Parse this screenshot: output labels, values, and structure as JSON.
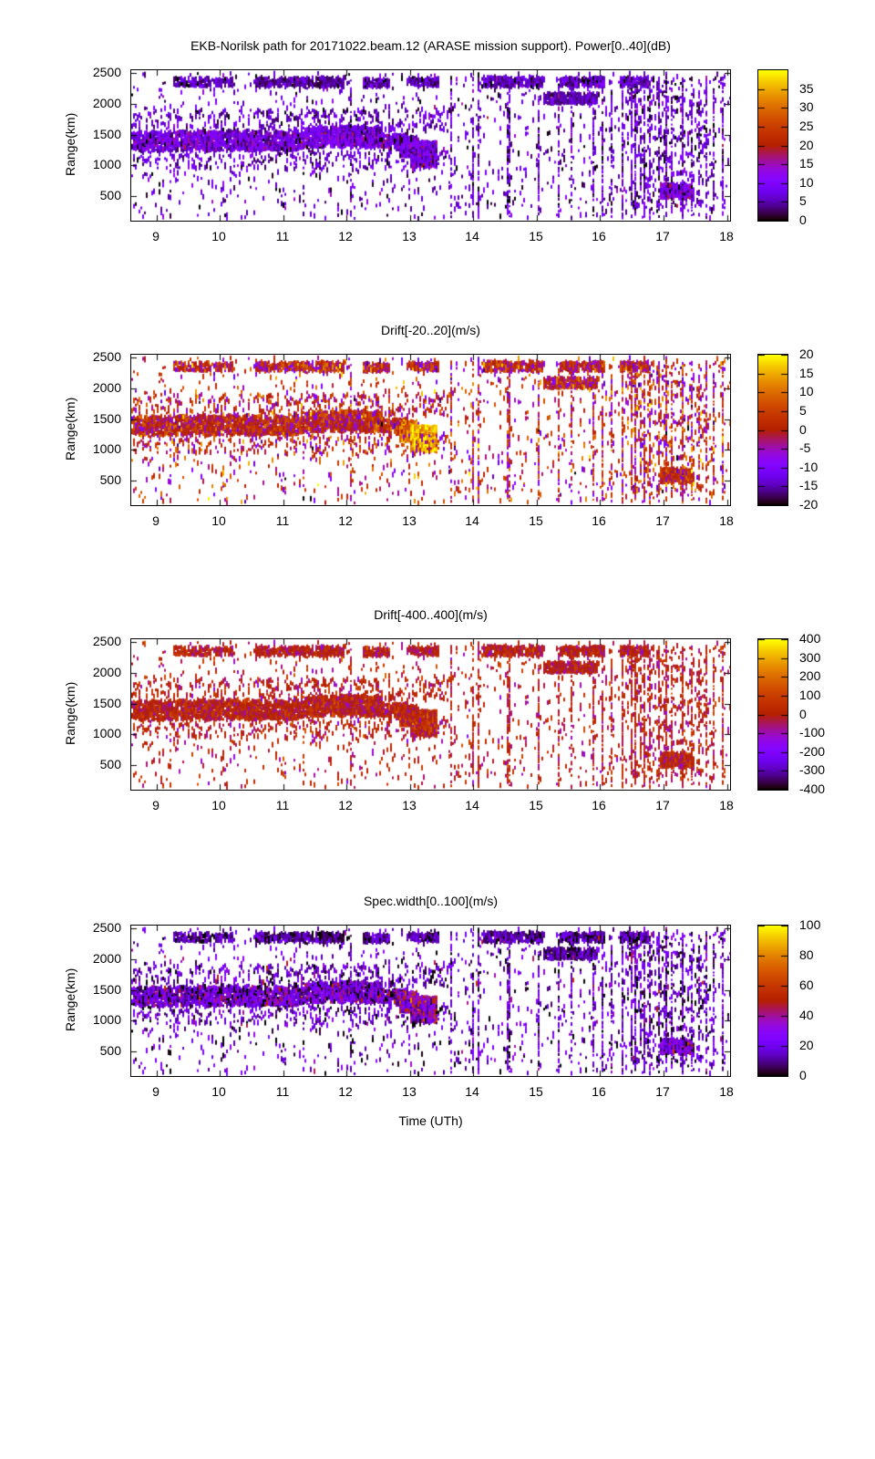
{
  "page": {
    "background": "#ffffff"
  },
  "chart_data": {
    "type": "heatmap",
    "description": "Four stacked range-time-intensity radar panels sharing identical echo positions, colored by panel-specific quantity",
    "x_axis": {
      "label": "Time (UTh)",
      "range": [
        8.6,
        18.05
      ],
      "ticks": [
        9,
        10,
        11,
        12,
        13,
        14,
        15,
        16,
        17,
        18
      ]
    },
    "y_axis": {
      "label": "Range(km)",
      "range": [
        100,
        2550
      ],
      "ticks": [
        500,
        1000,
        1500,
        2000,
        2500
      ]
    },
    "palette": {
      "name": "gnuplot-pm3d-black-purple-red-yellow",
      "formula": "R=sqrt(t), G=t^3, B=max(0,sin(2*pi*t))",
      "reference_stops": [
        [
          0.0,
          "#000000"
        ],
        [
          0.125,
          "#5a00b4"
        ],
        [
          0.25,
          "#7f04ff"
        ],
        [
          0.375,
          "#9c0db4"
        ],
        [
          0.5,
          "#b42000"
        ],
        [
          0.625,
          "#c93e00"
        ],
        [
          0.75,
          "#dd6b00"
        ],
        [
          0.875,
          "#efab00"
        ],
        [
          1.0,
          "#ffff00"
        ]
      ]
    },
    "panels": [
      {
        "id": "power",
        "title": "EKB-Norilsk path for 20171022.beam.12 (ARASE mission support). Power[0..40](dB)",
        "quantity": "Power",
        "units": "dB",
        "value_range": [
          0,
          40
        ],
        "colorbar_ticks": [
          0,
          5,
          10,
          15,
          20,
          25,
          30,
          35
        ]
      },
      {
        "id": "drift-20-20",
        "title": "Drift[-20..20](m/s)",
        "quantity": "Drift",
        "units": "m/s",
        "value_range": [
          -20,
          20
        ],
        "colorbar_ticks": [
          -20,
          -15,
          -10,
          -5,
          0,
          5,
          10,
          15,
          20
        ]
      },
      {
        "id": "drift-400-400",
        "title": "Drift[-400..400](m/s)",
        "quantity": "Drift",
        "units": "m/s",
        "value_range": [
          -400,
          400
        ],
        "colorbar_ticks": [
          -400,
          -300,
          -200,
          -100,
          0,
          100,
          200,
          300,
          400
        ]
      },
      {
        "id": "spec-width",
        "title": "Spec.width[0..100](m/s)",
        "quantity": "Spec.width",
        "units": "m/s",
        "value_range": [
          0,
          100
        ],
        "colorbar_ticks": [
          0,
          20,
          40,
          60,
          80,
          100
        ]
      }
    ],
    "seed": 20171022,
    "features_note": "Echo clusters: x=[h0,h1] UT hours, y=[km0,km1] range km, n=points, d=per-panel [mean,sd] in panel units (power dB, drift m/s, drift m/s, width m/s)",
    "features": [
      {
        "name": "main-band-early",
        "x": [
          8.6,
          11.25
        ],
        "y": [
          1245,
          1545
        ],
        "n": 1500,
        "d": [
          [
            9,
            4
          ],
          [
            1,
            5
          ],
          [
            15,
            55
          ],
          [
            20,
            15
          ]
        ]
      },
      {
        "name": "main-band-rise",
        "x": [
          11.25,
          12.55
        ],
        "y": [
          1290,
          1630
        ],
        "n": 800,
        "d": [
          [
            9,
            4
          ],
          [
            1,
            5
          ],
          [
            15,
            55
          ],
          [
            20,
            15
          ]
        ]
      },
      {
        "name": "main-band-gap",
        "x": [
          12.55,
          12.95
        ],
        "y": [
          1250,
          1500
        ],
        "n": 200,
        "d": [
          [
            9,
            4
          ],
          [
            1,
            5
          ],
          [
            15,
            55
          ],
          [
            20,
            15
          ]
        ]
      },
      {
        "name": "blob13-left",
        "x": [
          12.82,
          13.12
        ],
        "y": [
          1150,
          1460
        ],
        "n": 260,
        "d": [
          [
            8,
            4
          ],
          [
            8,
            6
          ],
          [
            25,
            60
          ],
          [
            30,
            18
          ]
        ]
      },
      {
        "name": "blob13-core",
        "x": [
          13.0,
          13.42
        ],
        "y": [
          980,
          1380
        ],
        "n": 650,
        "d": [
          [
            9,
            4
          ],
          [
            16,
            4
          ],
          [
            40,
            70
          ],
          [
            35,
            18
          ]
        ]
      },
      {
        "name": "band-fuzz-above",
        "x": [
          8.6,
          13.6
        ],
        "y": [
          1550,
          1900
        ],
        "n": 320,
        "d": [
          [
            6,
            3
          ],
          [
            0,
            6
          ],
          [
            0,
            60
          ],
          [
            14,
            10
          ]
        ]
      },
      {
        "name": "band-fuzz-below",
        "x": [
          8.6,
          13.6
        ],
        "y": [
          950,
          1240
        ],
        "n": 260,
        "d": [
          [
            6,
            3
          ],
          [
            0,
            6
          ],
          [
            0,
            60
          ],
          [
            14,
            10
          ]
        ]
      },
      {
        "name": "top-band-1",
        "x": [
          9.25,
          10.2
        ],
        "y": [
          2290,
          2420
        ],
        "n": 180,
        "d": [
          [
            5,
            3
          ],
          [
            0,
            6
          ],
          [
            0,
            55
          ],
          [
            10,
            8
          ]
        ]
      },
      {
        "name": "top-band-2",
        "x": [
          10.55,
          11.95
        ],
        "y": [
          2280,
          2430
        ],
        "n": 380,
        "d": [
          [
            4,
            2
          ],
          [
            0,
            6
          ],
          [
            0,
            55
          ],
          [
            9,
            7
          ]
        ]
      },
      {
        "name": "top-band-3",
        "x": [
          12.25,
          12.65
        ],
        "y": [
          2280,
          2400
        ],
        "n": 120,
        "d": [
          [
            5,
            3
          ],
          [
            0,
            6
          ],
          [
            0,
            55
          ],
          [
            10,
            8
          ]
        ]
      },
      {
        "name": "top-band-4",
        "x": [
          12.95,
          13.45
        ],
        "y": [
          2300,
          2420
        ],
        "n": 130,
        "d": [
          [
            5,
            3
          ],
          [
            0,
            6
          ],
          [
            0,
            55
          ],
          [
            10,
            8
          ]
        ]
      },
      {
        "name": "top-band-5",
        "x": [
          14.15,
          15.1
        ],
        "y": [
          2280,
          2440
        ],
        "n": 300,
        "d": [
          [
            5,
            3
          ],
          [
            0,
            6
          ],
          [
            0,
            55
          ],
          [
            10,
            8
          ]
        ]
      },
      {
        "name": "top-band-6",
        "x": [
          15.35,
          16.05
        ],
        "y": [
          2290,
          2430
        ],
        "n": 200,
        "d": [
          [
            5,
            3
          ],
          [
            0,
            6
          ],
          [
            0,
            55
          ],
          [
            10,
            8
          ]
        ]
      },
      {
        "name": "top-band-7",
        "x": [
          16.3,
          16.75
        ],
        "y": [
          2280,
          2430
        ],
        "n": 120,
        "d": [
          [
            5,
            3
          ],
          [
            0,
            6
          ],
          [
            0,
            55
          ],
          [
            10,
            8
          ]
        ]
      },
      {
        "name": "clump-15h-2100km",
        "x": [
          15.1,
          15.95
        ],
        "y": [
          2010,
          2170
        ],
        "n": 330,
        "d": [
          [
            5,
            2
          ],
          [
            0,
            5
          ],
          [
            0,
            50
          ],
          [
            8,
            6
          ]
        ]
      },
      {
        "name": "blob-17h-600km",
        "x": [
          16.95,
          17.45
        ],
        "y": [
          470,
          690
        ],
        "n": 420,
        "d": [
          [
            12,
            3
          ],
          [
            3,
            4
          ],
          [
            30,
            50
          ],
          [
            25,
            13
          ]
        ]
      },
      {
        "name": "sparse-field",
        "x": [
          8.6,
          18.05
        ],
        "y": [
          130,
          2500
        ],
        "n": 1100,
        "d": [
          [
            6,
            4
          ],
          [
            0,
            8
          ],
          [
            0,
            70
          ],
          [
            15,
            13
          ]
        ]
      },
      {
        "name": "sparse-right-dense",
        "x": [
          16.35,
          17.75
        ],
        "y": [
          280,
          2450
        ],
        "n": 350,
        "d": [
          [
            6,
            4
          ],
          [
            0,
            8
          ],
          [
            0,
            70
          ],
          [
            15,
            13
          ]
        ]
      }
    ],
    "streaks": {
      "note": "thin full-height interference columns at these UT hours",
      "x_positions": [
        12.05,
        13.62,
        13.98,
        14.07,
        14.52,
        14.56,
        15.02,
        15.32,
        15.52,
        15.88,
        16.02,
        16.18,
        16.33,
        16.47,
        16.55,
        16.68,
        16.78,
        16.9,
        17.02,
        17.12,
        17.28,
        17.42,
        17.55,
        17.65,
        17.78,
        17.92
      ],
      "y": [
        140,
        2450
      ],
      "n_per": 40,
      "d": [
        [
          6,
          4
        ],
        [
          0,
          7
        ],
        [
          0,
          60
        ],
        [
          14,
          12
        ]
      ]
    }
  }
}
